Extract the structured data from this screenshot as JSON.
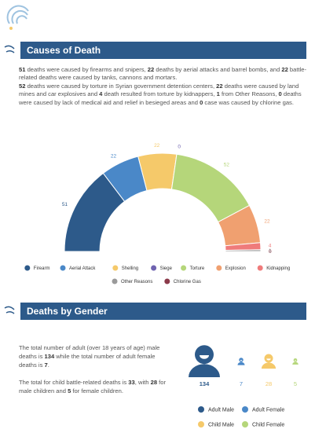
{
  "sections": [
    {
      "title": "Causes of Death",
      "paragraphs": [
        [
          {
            "text": "51",
            "bold": true
          },
          {
            "text": " deaths were caused by firearms and snipers, ",
            "bold": false
          },
          {
            "text": "22",
            "bold": true
          },
          {
            "text": " deaths by aerial attacks and barrel bombs, and ",
            "bold": false
          },
          {
            "text": "22",
            "bold": true
          },
          {
            "text": " battle-related deaths were caused by tanks, cannons and mortars.",
            "bold": false
          }
        ],
        [
          {
            "text": "52",
            "bold": true
          },
          {
            "text": " deaths were caused by torture in Syrian government detention centers, ",
            "bold": false
          },
          {
            "text": "22",
            "bold": true
          },
          {
            "text": " deaths were caused by land mines and car explosives and ",
            "bold": false
          },
          {
            "text": "4",
            "bold": true
          },
          {
            "text": " death resulted from torture by kidnappers, ",
            "bold": false
          },
          {
            "text": "1",
            "bold": true
          },
          {
            "text": " from Other Reasons, ",
            "bold": false
          },
          {
            "text": "0",
            "bold": true
          },
          {
            "text": " deaths were caused by lack of medical aid and relief in besieged areas and ",
            "bold": false
          },
          {
            "text": "0",
            "bold": true
          },
          {
            "text": " case was caused by chlorine gas.",
            "bold": false
          }
        ]
      ],
      "chart": {
        "type": "half-donut",
        "categories": [
          "Firearm",
          "Aerial Attack",
          "Shelling",
          "Siege",
          "Torture",
          "Explosion",
          "Kidnapping",
          "Other Reasons",
          "Chlorine Gas"
        ],
        "values": [
          51,
          22,
          22,
          0,
          52,
          22,
          4,
          1,
          0
        ],
        "colors": [
          "#2d5a8a",
          "#4a88c8",
          "#f5c96a",
          "#6f63b0",
          "#b5d67a",
          "#f0a070",
          "#ef7b7b",
          "#9a9a9a",
          "#8b3a4a"
        ]
      }
    },
    {
      "title": "Deaths by Gender",
      "paragraphs": [
        [
          {
            "text": "The total number of adult (over 18 years of age) male deaths is ",
            "bold": false
          },
          {
            "text": "134",
            "bold": true
          },
          {
            "text": " while the total number of adult female deaths is ",
            "bold": false
          },
          {
            "text": "7",
            "bold": true
          },
          {
            "text": ".",
            "bold": false
          }
        ],
        [
          {
            "text": "The total for child battle-related deaths is ",
            "bold": false
          },
          {
            "text": "33",
            "bold": true
          },
          {
            "text": ", with ",
            "bold": false
          },
          {
            "text": "28",
            "bold": true
          },
          {
            "text": " for male children and ",
            "bold": false
          },
          {
            "text": "5",
            "bold": true
          },
          {
            "text": " for female children.",
            "bold": false
          }
        ]
      ],
      "chart": {
        "type": "icons",
        "categories": [
          "Adult Male",
          "Adult Female",
          "Child Male",
          "Child Female"
        ],
        "values": [
          134,
          7,
          28,
          5
        ],
        "colors": [
          "#2d5a8a",
          "#4a88c8",
          "#f5c96a",
          "#b5d67a"
        ]
      }
    }
  ]
}
